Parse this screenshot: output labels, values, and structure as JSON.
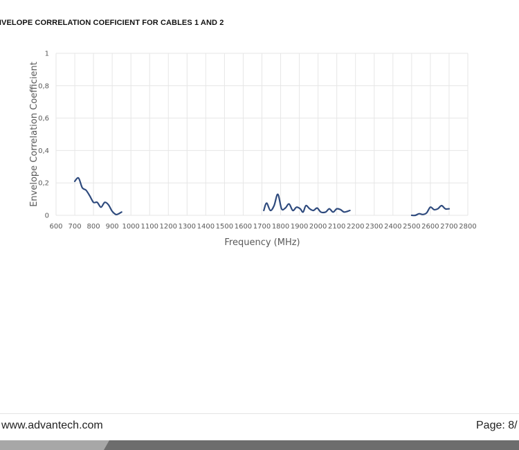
{
  "header": {
    "title": "NVELOPE CORRELATION COEFICIENT FOR CABLES 1 AND 2"
  },
  "footer": {
    "website": "www.advantech.com",
    "page": "Page: 8/"
  },
  "colors": {
    "series": "#2e4a7d",
    "grid": "#e6e6e6",
    "axis_text": "#595959",
    "footer_band": "#6d6d6d",
    "footer_band_light": "#a7a7a7"
  },
  "chart_data": {
    "type": "line",
    "title": "",
    "xlabel": "Frequency (MHz)",
    "ylabel": "Envelope Correlation Coefficient",
    "xlim": [
      600,
      2800
    ],
    "ylim": [
      0,
      1
    ],
    "x_ticks": [
      600,
      700,
      800,
      900,
      1000,
      1100,
      1200,
      1300,
      1400,
      1500,
      1600,
      1700,
      1800,
      1900,
      2000,
      2100,
      2200,
      2300,
      2400,
      2500,
      2600,
      2700,
      2800
    ],
    "y_ticks": [
      0,
      0.2,
      0.4,
      0.6,
      0.8,
      1
    ],
    "y_tick_labels": [
      "0",
      "0,2",
      "0,4",
      "0,6",
      "0,8",
      "1"
    ],
    "grid": true,
    "series": [
      {
        "segments": [
          [
            [
              700,
              0.21
            ],
            [
              720,
              0.23
            ],
            [
              740,
              0.17
            ],
            [
              760,
              0.155
            ],
            [
              780,
              0.12
            ],
            [
              800,
              0.08
            ],
            [
              820,
              0.08
            ],
            [
              840,
              0.05
            ],
            [
              860,
              0.08
            ],
            [
              880,
              0.065
            ],
            [
              900,
              0.025
            ],
            [
              920,
              0.005
            ],
            [
              935,
              0.01
            ],
            [
              950,
              0.02
            ]
          ],
          [
            [
              1710,
              0.03
            ],
            [
              1725,
              0.075
            ],
            [
              1745,
              0.03
            ],
            [
              1765,
              0.06
            ],
            [
              1785,
              0.13
            ],
            [
              1805,
              0.04
            ],
            [
              1825,
              0.045
            ],
            [
              1845,
              0.07
            ],
            [
              1865,
              0.03
            ],
            [
              1885,
              0.05
            ],
            [
              1905,
              0.04
            ],
            [
              1920,
              0.02
            ],
            [
              1935,
              0.06
            ],
            [
              1955,
              0.04
            ],
            [
              1975,
              0.03
            ],
            [
              1995,
              0.045
            ],
            [
              2015,
              0.02
            ],
            [
              2040,
              0.02
            ],
            [
              2060,
              0.04
            ],
            [
              2080,
              0.02
            ],
            [
              2100,
              0.04
            ],
            [
              2120,
              0.035
            ],
            [
              2140,
              0.02
            ],
            [
              2170,
              0.03
            ]
          ],
          [
            [
              2500,
              0.0
            ],
            [
              2520,
              0.0
            ],
            [
              2540,
              0.01
            ],
            [
              2560,
              0.005
            ],
            [
              2580,
              0.015
            ],
            [
              2600,
              0.05
            ],
            [
              2620,
              0.035
            ],
            [
              2640,
              0.04
            ],
            [
              2660,
              0.06
            ],
            [
              2680,
              0.04
            ],
            [
              2700,
              0.04
            ]
          ]
        ]
      }
    ]
  }
}
